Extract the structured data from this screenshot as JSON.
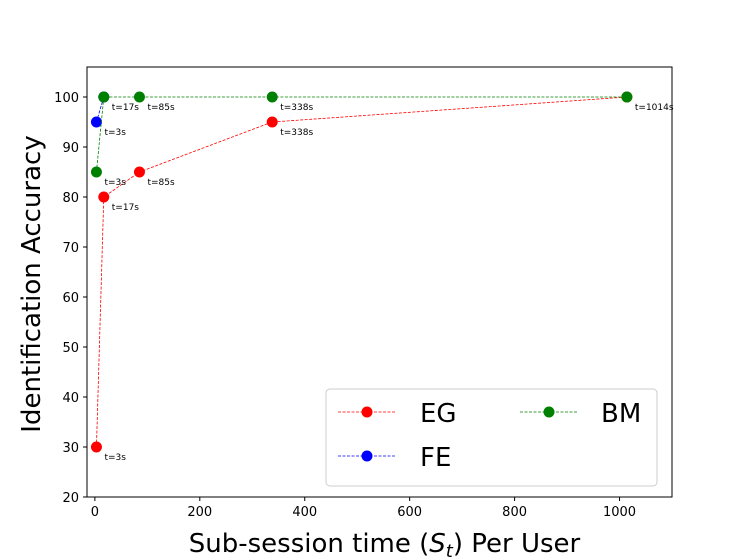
{
  "chart_data": {
    "type": "line",
    "xlabel_main": "Sub-session time (",
    "xlabel_sym": "S",
    "xlabel_sub": "t",
    "xlabel_rest": ") Per User",
    "ylabel": "Identification Accuracy",
    "xlim": [
      -15,
      1100
    ],
    "ylim": [
      20,
      106
    ],
    "xticks": [
      0,
      200,
      400,
      600,
      800,
      1000
    ],
    "yticks": [
      20,
      30,
      40,
      50,
      60,
      70,
      80,
      90,
      100
    ],
    "grid": false,
    "legend_position": "lower-right",
    "series": [
      {
        "name": "EG",
        "color": "#ff0000",
        "x": [
          3,
          17,
          85,
          338,
          1014
        ],
        "y": [
          30,
          80,
          85,
          95,
          100
        ],
        "labels": [
          "t=3s",
          "t=17s",
          "t=85s",
          "t=338s",
          "t=1014s"
        ]
      },
      {
        "name": "FE",
        "color": "#0000ff",
        "x": [
          3,
          17
        ],
        "y": [
          95,
          100
        ],
        "labels": [
          "t=3s",
          "t=17s"
        ]
      },
      {
        "name": "BM",
        "color": "#008000",
        "x": [
          3,
          17,
          85,
          338,
          1014
        ],
        "y": [
          85,
          100,
          100,
          100,
          100
        ],
        "labels": [
          "t=3s",
          "",
          "t=85s",
          "t=338s",
          ""
        ]
      }
    ]
  }
}
